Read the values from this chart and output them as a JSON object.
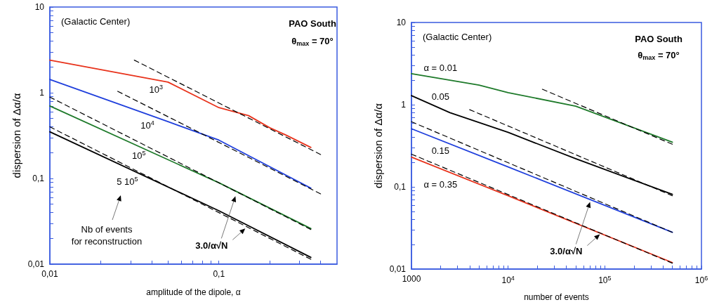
{
  "chart_data": [
    {
      "type": "line",
      "xlabel": "amplitude of the dipole, α",
      "ylabel": "dispersion of Δα/α",
      "log": "xy",
      "grid": false,
      "marker": "none",
      "line_style": "solid",
      "xlim": [
        0.01,
        0.5
      ],
      "ylim": [
        0.01,
        10
      ],
      "xticks": [
        {
          "value": 0.01,
          "label": "0,01"
        },
        {
          "value": 0.02,
          "label": null
        },
        {
          "value": 0.03,
          "label": null
        },
        {
          "value": 0.04,
          "label": null
        },
        {
          "value": 0.05,
          "label": null
        },
        {
          "value": 0.06,
          "label": null
        },
        {
          "value": 0.07,
          "label": null
        },
        {
          "value": 0.08,
          "label": null
        },
        {
          "value": 0.09,
          "label": null
        },
        {
          "value": 0.1,
          "label": "0,1"
        },
        {
          "value": 0.2,
          "label": null
        },
        {
          "value": 0.3,
          "label": null
        },
        {
          "value": 0.4,
          "label": null
        }
      ],
      "yticks": [
        {
          "value": 0.01,
          "label": "0,01"
        },
        {
          "value": 0.02,
          "label": null
        },
        {
          "value": 0.03,
          "label": null
        },
        {
          "value": 0.04,
          "label": null
        },
        {
          "value": 0.05,
          "label": null
        },
        {
          "value": 0.06,
          "label": null
        },
        {
          "value": 0.07,
          "label": null
        },
        {
          "value": 0.08,
          "label": null
        },
        {
          "value": 0.09,
          "label": null
        },
        {
          "value": 0.1,
          "label": "0,1"
        },
        {
          "value": 0.2,
          "label": null
        },
        {
          "value": 0.3,
          "label": null
        },
        {
          "value": 0.4,
          "label": null
        },
        {
          "value": 0.5,
          "label": null
        },
        {
          "value": 0.6,
          "label": null
        },
        {
          "value": 0.7,
          "label": null
        },
        {
          "value": 0.8,
          "label": null
        },
        {
          "value": 0.9,
          "label": null
        },
        {
          "value": 1,
          "label": "1"
        },
        {
          "value": 2,
          "label": null
        },
        {
          "value": 3,
          "label": null
        },
        {
          "value": 4,
          "label": null
        },
        {
          "value": 5,
          "label": null
        },
        {
          "value": 6,
          "label": null
        },
        {
          "value": 7,
          "label": null
        },
        {
          "value": 8,
          "label": null
        },
        {
          "value": 9,
          "label": null
        },
        {
          "value": 10,
          "label": "10"
        }
      ],
      "series": [
        {
          "color": "#000000",
          "line_style": "dashed",
          "x": [
            0.0316,
            0.4
          ],
          "values": [
            2.4,
            0.19
          ]
        },
        {
          "color": "#000000",
          "line_style": "dashed",
          "x": [
            0.0252,
            0.4
          ],
          "values": [
            1.04,
            0.066
          ]
        },
        {
          "color": "#000000",
          "line_style": "dashed",
          "x": [
            0.01,
            0.35
          ],
          "values": [
            0.89,
            0.0254
          ]
        },
        {
          "color": "#000000",
          "line_style": "dashed",
          "x": [
            0.01,
            0.35
          ],
          "values": [
            0.4,
            0.0114
          ]
        },
        {
          "name": "10$^{3}$",
          "color": "#e8331c",
          "x": [
            0.01,
            0.05,
            0.1,
            0.15,
            0.2,
            0.25,
            0.35
          ],
          "values": [
            2.4,
            1.33,
            0.67,
            0.54,
            0.39,
            0.32,
            0.23
          ]
        },
        {
          "name": "10$^{4}$",
          "color": "#1f3fdc",
          "x": [
            0.01,
            0.05,
            0.1,
            0.35
          ],
          "values": [
            1.43,
            0.46,
            0.28,
            0.077
          ]
        },
        {
          "name": "10$^{5}$",
          "color": "#1e7a2a",
          "x": [
            0.01,
            0.1,
            0.35
          ],
          "values": [
            0.7,
            0.089,
            0.026
          ]
        },
        {
          "name": "5 10$^{5}$",
          "color": "#000000",
          "x": [
            0.01,
            0.1,
            0.35
          ],
          "values": [
            0.35,
            0.042,
            0.012
          ]
        }
      ],
      "annotations": [
        "(Galactic Center)",
        "PAO South",
        "θ$_{max}$ = 70°",
        "Nb of events\nfor reconstruction",
        {
          "text": "3.0/α√N",
          "x": 0.146,
          "y": 0.027
        }
      ]
    },
    {
      "type": "line",
      "xlabel": "number of events",
      "ylabel": "dispersion of Δα/α",
      "log": "xy",
      "grid": false,
      "marker": "none",
      "line_style": "solid",
      "xlim": [
        1000,
        1000000
      ],
      "ylim": [
        0.01,
        10
      ],
      "xticks": [
        1000,
        {
          "value": 2000,
          "label": null
        },
        {
          "value": 3000,
          "label": null
        },
        {
          "value": 4000,
          "label": null
        },
        {
          "value": 5000,
          "label": null
        },
        {
          "value": 6000,
          "label": null
        },
        {
          "value": 7000,
          "label": null
        },
        {
          "value": 8000,
          "label": null
        },
        {
          "value": 9000,
          "label": null
        },
        {
          "value": 10000,
          "label": "10$^{4}$"
        },
        {
          "value": 20000,
          "label": null
        },
        {
          "value": 30000,
          "label": null
        },
        {
          "value": 40000,
          "label": null
        },
        {
          "value": 50000,
          "label": null
        },
        {
          "value": 60000,
          "label": null
        },
        {
          "value": 70000,
          "label": null
        },
        {
          "value": 80000,
          "label": null
        },
        {
          "value": 90000,
          "label": null
        },
        {
          "value": 100000,
          "label": "10$^{5}$"
        },
        {
          "value": 200000,
          "label": null
        },
        {
          "value": 300000,
          "label": null
        },
        {
          "value": 400000,
          "label": null
        },
        {
          "value": 500000,
          "label": null
        },
        {
          "value": 600000,
          "label": null
        },
        {
          "value": 700000,
          "label": null
        },
        {
          "value": 800000,
          "label": null
        },
        {
          "value": 900000,
          "label": null
        },
        {
          "value": 1000000,
          "label": "10$^{6}$"
        }
      ],
      "yticks": [
        {
          "value": 0.01,
          "label": "0,01"
        },
        {
          "value": 0.02,
          "label": null
        },
        {
          "value": 0.03,
          "label": null
        },
        {
          "value": 0.04,
          "label": null
        },
        {
          "value": 0.05,
          "label": null
        },
        {
          "value": 0.06,
          "label": null
        },
        {
          "value": 0.07,
          "label": null
        },
        {
          "value": 0.08,
          "label": null
        },
        {
          "value": 0.09,
          "label": null
        },
        {
          "value": 0.1,
          "label": "0,1"
        },
        {
          "value": 0.2,
          "label": null
        },
        {
          "value": 0.3,
          "label": null
        },
        {
          "value": 0.4,
          "label": null
        },
        {
          "value": 0.5,
          "label": null
        },
        {
          "value": 0.6,
          "label": null
        },
        {
          "value": 0.7,
          "label": null
        },
        {
          "value": 0.8,
          "label": null
        },
        {
          "value": 0.9,
          "label": null
        },
        {
          "value": 1,
          "label": "1"
        },
        {
          "value": 2,
          "label": null
        },
        {
          "value": 3,
          "label": null
        },
        {
          "value": 4,
          "label": null
        },
        {
          "value": 5,
          "label": null
        },
        {
          "value": 6,
          "label": null
        },
        {
          "value": 7,
          "label": null
        },
        {
          "value": 8,
          "label": null
        },
        {
          "value": 9,
          "label": null
        },
        {
          "value": 10,
          "label": "10"
        }
      ],
      "series": [
        {
          "color": "#000000",
          "line_style": "dashed",
          "x": [
            22600,
            500000
          ],
          "values": [
            1.54,
            0.33
          ]
        },
        {
          "color": "#000000",
          "line_style": "dashed",
          "x": [
            4000,
            500000
          ],
          "values": [
            0.87,
            0.078
          ]
        },
        {
          "color": "#000000",
          "line_style": "dashed",
          "x": [
            1000,
            500000
          ],
          "values": [
            0.62,
            0.028
          ]
        },
        {
          "color": "#000000",
          "line_style": "dashed",
          "x": [
            1000,
            500000
          ],
          "values": [
            0.25,
            0.0118
          ]
        },
        {
          "name": "α = 0.01",
          "color": "#1e7a2a",
          "x": [
            1000,
            5000,
            10000,
            50000,
            500000
          ],
          "values": [
            2.38,
            1.73,
            1.4,
            0.96,
            0.35
          ]
        },
        {
          "name": "0.05",
          "color": "#000000",
          "x": [
            1000,
            2500,
            10000,
            50000,
            500000
          ],
          "values": [
            1.29,
            0.8,
            0.46,
            0.22,
            0.081
          ]
        },
        {
          "name": "0.15",
          "color": "#1f3fdc",
          "x": [
            1000,
            10000,
            500000
          ],
          "values": [
            0.51,
            0.175,
            0.028
          ]
        },
        {
          "name": "α = 0.35",
          "color": "#e8331c",
          "x": [
            1000,
            10000,
            500000
          ],
          "values": [
            0.23,
            0.078,
            0.012
          ]
        }
      ],
      "annotations": [
        "(Galactic Center)",
        "PAO South",
        "θ$_{max}$ = 70°",
        {
          "text": "3.0/α√N",
          "x": 92000,
          "y": 0.0275
        }
      ]
    }
  ]
}
